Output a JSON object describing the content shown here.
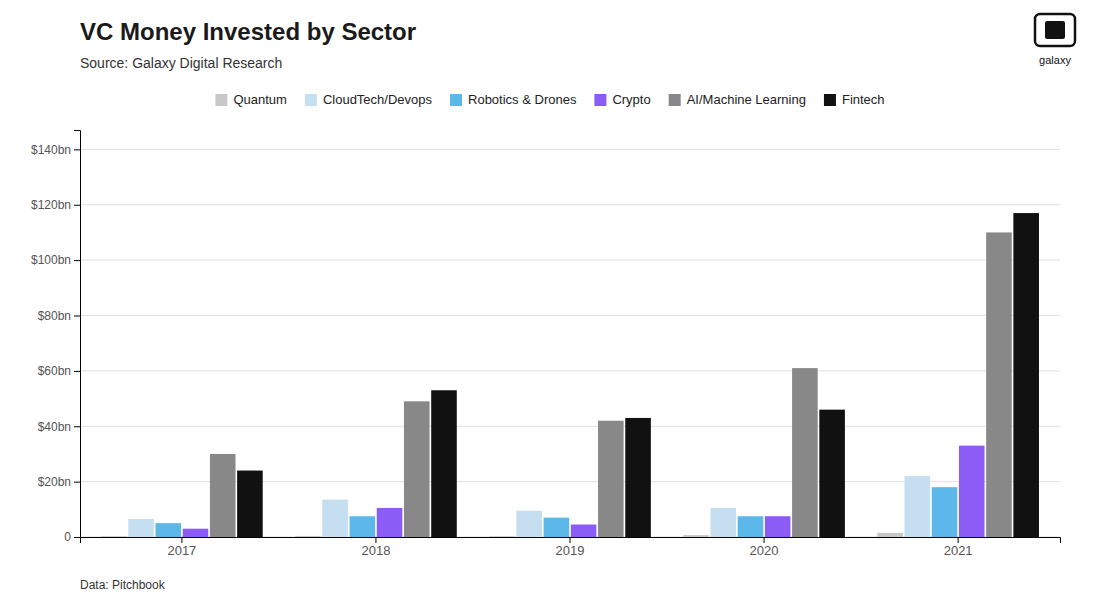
{
  "chart_data": {
    "type": "bar",
    "title": "VC Money Invested by Sector",
    "subtitle": "Source: Galaxy Digital Research",
    "footnote": "Data: Pitchbook",
    "annotations": [
      "galaxy"
    ],
    "categories": [
      "2017",
      "2018",
      "2019",
      "2020",
      "2021"
    ],
    "series": [
      {
        "name": "Quantum",
        "color": "#c8c8c8",
        "values": [
          0.3,
          0.4,
          0.3,
          0.7,
          1.5
        ]
      },
      {
        "name": "CloudTech/Devops",
        "color": "#c5dff0",
        "values": [
          6.5,
          13.5,
          9.5,
          10.5,
          22.0
        ]
      },
      {
        "name": "Robotics & Drones",
        "color": "#5bb8e8",
        "values": [
          5.0,
          7.5,
          7.0,
          7.5,
          18.0
        ]
      },
      {
        "name": "Crypto",
        "color": "#8b5cf6",
        "values": [
          3.0,
          10.5,
          4.5,
          7.5,
          33.0
        ]
      },
      {
        "name": "AI/Machine Learning",
        "color": "#888888",
        "values": [
          30.0,
          49.0,
          42.0,
          61.0,
          110.0
        ]
      },
      {
        "name": "Fintech",
        "color": "#111111",
        "values": [
          24.0,
          53.0,
          43.0,
          46.0,
          117.0
        ]
      }
    ],
    "ylim": [
      0,
      147
    ],
    "yticks": [
      0,
      {
        "value": 20,
        "label": "$20bn"
      },
      {
        "value": 40,
        "label": "$40bn"
      },
      {
        "value": 60,
        "label": "$60bn"
      },
      {
        "value": 80,
        "label": "$80bn"
      },
      {
        "value": 100,
        "label": "$100bn"
      },
      {
        "value": 120,
        "label": "$120bn"
      },
      {
        "value": 140,
        "label": "$140bn"
      }
    ],
    "grid": true,
    "legend": "top"
  }
}
